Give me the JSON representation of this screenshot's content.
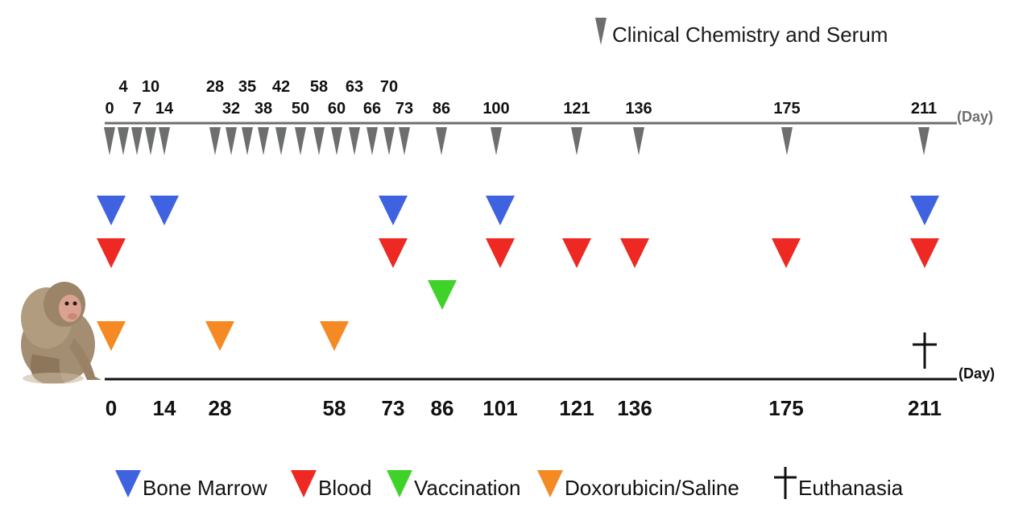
{
  "legend_top": {
    "label": "Clinical Chemistry and Serum",
    "color": "#6d6f6e"
  },
  "top_axis": {
    "unit_label": "(Day)",
    "days": [
      0,
      4,
      7,
      10,
      14,
      28,
      32,
      35,
      38,
      42,
      50,
      58,
      60,
      63,
      66,
      70,
      73,
      86,
      100,
      121,
      136,
      175,
      211
    ],
    "labels": [
      {
        "text": "0",
        "day": 0,
        "row": "lower"
      },
      {
        "text": "4",
        "day": 4,
        "row": "upper"
      },
      {
        "text": "7",
        "day": 7,
        "row": "lower"
      },
      {
        "text": "10",
        "day": 10,
        "row": "upper"
      },
      {
        "text": "14",
        "day": 14,
        "row": "lower"
      },
      {
        "text": "28",
        "day": 28,
        "row": "upper"
      },
      {
        "text": "32",
        "day": 32,
        "row": "lower"
      },
      {
        "text": "35",
        "day": 35,
        "row": "upper"
      },
      {
        "text": "38",
        "day": 38,
        "row": "lower"
      },
      {
        "text": "42",
        "day": 42,
        "row": "upper"
      },
      {
        "text": "50",
        "day": 50,
        "row": "lower"
      },
      {
        "text": "58",
        "day": 58,
        "row": "upper"
      },
      {
        "text": "60",
        "day": 60,
        "row": "lower"
      },
      {
        "text": "63",
        "day": 63,
        "row": "upper"
      },
      {
        "text": "66",
        "day": 66,
        "row": "lower"
      },
      {
        "text": "70",
        "day": 70,
        "row": "upper"
      },
      {
        "text": "73",
        "day": 73,
        "row": "lower"
      },
      {
        "text": "86",
        "day": 86,
        "row": "lower"
      },
      {
        "text": "100",
        "day": 100,
        "row": "lower"
      },
      {
        "text": "121",
        "day": 121,
        "row": "lower"
      },
      {
        "text": "136",
        "day": 136,
        "row": "lower"
      },
      {
        "text": "175",
        "day": 175,
        "row": "lower"
      },
      {
        "text": "211",
        "day": 211,
        "row": "lower"
      }
    ]
  },
  "bottom_axis": {
    "unit_label": "(Day)",
    "ticks": [
      "0",
      "14",
      "28",
      "58",
      "73",
      "86",
      "101",
      "121",
      "136",
      "175",
      "211"
    ]
  },
  "event_rows": [
    {
      "name": "Bone Marrow",
      "color": "#3f63e0",
      "days": [
        0,
        14,
        73,
        101,
        211
      ]
    },
    {
      "name": "Blood",
      "color": "#ee2822",
      "days": [
        0,
        73,
        101,
        121,
        136,
        175,
        211
      ]
    },
    {
      "name": "Vaccination",
      "color": "#3fd32a",
      "days": [
        86
      ]
    },
    {
      "name": "Doxorubicin/Saline",
      "color": "#f58a25",
      "days": [
        0,
        28,
        58
      ]
    }
  ],
  "euthanasia": {
    "label": "Euthanasia",
    "day": 211
  },
  "legend": [
    {
      "label": "Bone Marrow",
      "color": "#3f63e0",
      "symbol": "triangle"
    },
    {
      "label": "Blood",
      "color": "#ee2822",
      "symbol": "triangle"
    },
    {
      "label": "Vaccination",
      "color": "#3fd32a",
      "symbol": "triangle"
    },
    {
      "label": "Doxorubicin/Saline",
      "color": "#f58a25",
      "symbol": "triangle"
    },
    {
      "label": "Euthanasia",
      "color": "#000000",
      "symbol": "cross"
    }
  ],
  "illustration": {
    "name": "rhesus-macaque"
  }
}
